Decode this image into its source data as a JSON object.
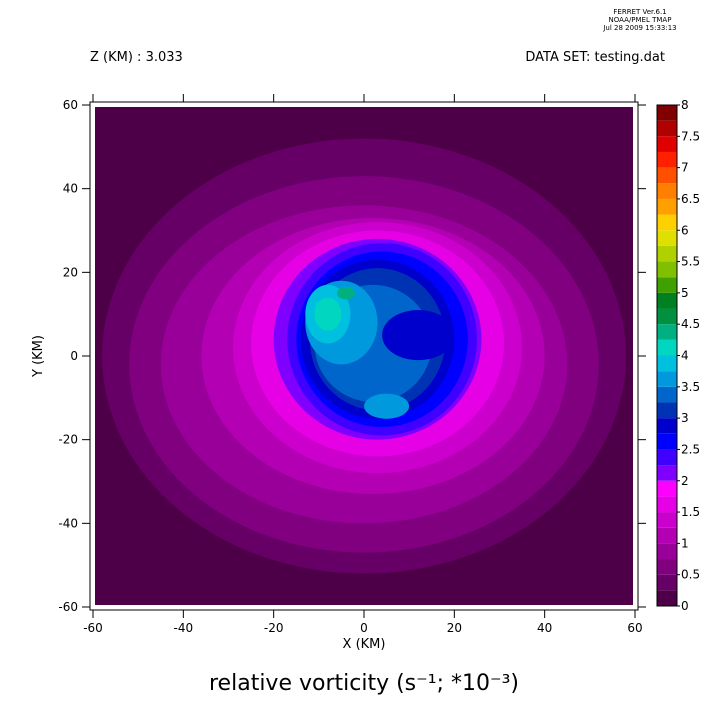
{
  "chart_data": {
    "type": "contour",
    "header": [
      "FERRET  Ver.6.1",
      "NOAA/PMEL TMAP",
      "Jul 28 2009 15:33:13"
    ],
    "subtitle_left": "Z (KM) : 3.033",
    "subtitle_right": "DATA SET: testing.dat",
    "title": "relative vorticity (s⁻¹; *10⁻³)",
    "x_label": "X (KM)",
    "y_label": "Y (KM)",
    "xlim": [
      -60,
      60
    ],
    "ylim": [
      -60,
      60
    ],
    "xticks": [
      -60,
      -40,
      -20,
      0,
      20,
      40,
      60
    ],
    "yticks": [
      -60,
      -40,
      -20,
      0,
      20,
      40,
      60
    ],
    "levels": [
      0,
      0.25,
      0.5,
      0.75,
      1,
      1.25,
      1.5,
      1.75,
      2,
      2.25,
      2.5,
      2.75,
      3,
      3.25,
      3.5,
      3.75,
      4,
      4.25,
      4.5,
      4.75,
      5,
      5.25,
      5.5,
      5.75,
      6,
      6.25,
      6.5,
      6.75,
      7,
      7.25,
      7.5,
      7.75,
      8
    ],
    "colors": [
      "#4d0047",
      "#660066",
      "#80007f",
      "#990099",
      "#b300b3",
      "#cc00cc",
      "#e600e6",
      "#ff00ff",
      "#8000ff",
      "#4000ff",
      "#0000ff",
      "#0000cc",
      "#0033b3",
      "#0066cc",
      "#0099dd",
      "#00c0e0",
      "#00d6c0",
      "#00b080",
      "#009040",
      "#008020",
      "#40a000",
      "#80c000",
      "#b0d000",
      "#e0e000",
      "#ffd000",
      "#ffa000",
      "#ff8000",
      "#ff5000",
      "#ff2000",
      "#e00000",
      "#b00000",
      "#800000"
    ],
    "colorbar_ticks": [
      0,
      0.5,
      1,
      1.5,
      2,
      2.5,
      3,
      3.5,
      4,
      4.5,
      5,
      5.5,
      6,
      6.5,
      7,
      7.5,
      8
    ],
    "regions": [
      {
        "level": 0.25,
        "x": 0,
        "y": 0,
        "rx": 58,
        "ry": 52
      },
      {
        "level": 0.5,
        "x": 0,
        "y": -2,
        "rx": 52,
        "ry": 45
      },
      {
        "level": 0.75,
        "x": 0,
        "y": -2,
        "rx": 45,
        "ry": 38
      },
      {
        "level": 1,
        "x": 2,
        "y": 0,
        "rx": 38,
        "ry": 33
      },
      {
        "level": 1.25,
        "x": 3,
        "y": 2,
        "rx": 32,
        "ry": 30
      },
      {
        "level": 1.5,
        "x": 3,
        "y": 3,
        "rx": 28,
        "ry": 27
      },
      {
        "level": 2,
        "x": 3,
        "y": 4,
        "rx": 23,
        "ry": 24
      },
      {
        "level": 2.25,
        "x": 4,
        "y": 4,
        "rx": 21,
        "ry": 23
      },
      {
        "level": 2.5,
        "x": 4,
        "y": 4,
        "rx": 19,
        "ry": 21
      },
      {
        "level": 2.75,
        "x": 3,
        "y": 4,
        "rx": 17,
        "ry": 19
      },
      {
        "level": 3,
        "x": 3,
        "y": 4,
        "rx": 15,
        "ry": 17
      },
      {
        "level": 3.25,
        "x": 2,
        "y": 3,
        "rx": 13,
        "ry": 14
      },
      {
        "level": 2.75,
        "x": 12,
        "y": 5,
        "rx": 8,
        "ry": 6
      },
      {
        "level": 3.5,
        "x": -5,
        "y": 8,
        "rx": 8,
        "ry": 10
      },
      {
        "level": 3.5,
        "x": 5,
        "y": -12,
        "rx": 5,
        "ry": 3
      },
      {
        "level": 3.75,
        "x": -8,
        "y": 10,
        "rx": 5,
        "ry": 7
      },
      {
        "level": 4,
        "x": -8,
        "y": 10,
        "rx": 3,
        "ry": 4
      },
      {
        "level": 4.25,
        "x": -4,
        "y": 15,
        "rx": 2,
        "ry": 1.5
      }
    ]
  }
}
